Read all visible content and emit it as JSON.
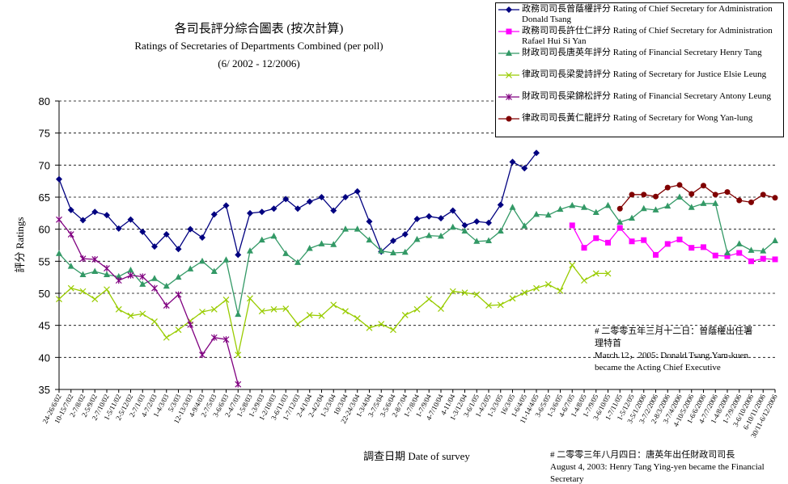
{
  "chart_data": {
    "type": "line",
    "title": "各司長評分綜合圖表 (按次計算)",
    "subtitle": "Ratings of Secretaries of Departments Combined (per poll)",
    "period": "(6/ 2002 -  12/2006)",
    "y_label": "評分 Ratings",
    "x_label": "調查日期 Date of survey",
    "categories": [
      "24-26/6/02",
      "10-15/7/02",
      "2-7/8/02",
      "2-5/9/02",
      "2-7/10/02",
      "1-5/11/02",
      "2-5/12/02",
      "2-7/1/03",
      "4-7/2/03",
      "1-4/3/03",
      "5/3/03",
      "12-13/3/03",
      "4-9/4/03",
      "2-7/5/03",
      "3-6/6/03",
      "2-4/7/03",
      "1-5/8/03",
      "1-3/9/03",
      "1-2/10/03",
      "3-6/11/03",
      "1-7/12/03",
      "2-4/1/04",
      "2-4/2/04",
      "1-3/3/04",
      "10/3/04",
      "22-24/3/04",
      "1-3/4/04",
      "3-7/5/04",
      "3-5/6/04",
      "2-8/7/04",
      "1-7/8/04",
      "1-7/9/04",
      "4-7/10/04",
      "4-11/04",
      "1-3/12/04",
      "3-6/1/05",
      "1-4/2/05",
      "1-3/3/05",
      "16/3/05",
      "1-6/4/05",
      "11-14/4/05",
      "3-6/5/05",
      "1-3/6/05",
      "4-6/7/05",
      "1-4/8/05",
      "1-7/9/05",
      "3-6/10/05",
      "1-7/11/05",
      "1-5/12/05",
      "3-5/1/2006",
      "3-7/2/2006",
      "2-8/3/2006",
      "3-7/4/2006",
      "4-10/5/2006",
      "1-6/6/2006",
      "4-7/7/2006",
      "1-4/8/2006",
      "1-7/9/2006",
      "3-6/10/2006",
      "6-10/11/2006",
      "30/11-6/12/2006"
    ],
    "series": [
      {
        "name": "政務司司長曾蔭權評分 Rating of Chief Secretary for Administration Donald Tsang",
        "color": "#000080",
        "marker": "diamond",
        "values": [
          67.8,
          63.0,
          61.4,
          62.7,
          62.2,
          60.1,
          61.5,
          59.6,
          57.3,
          59.2,
          56.9,
          60.0,
          58.7,
          62.3,
          63.7,
          56.0,
          62.5,
          62.7,
          63.2,
          64.7,
          63.2,
          64.3,
          65.0,
          62.9,
          65.0,
          65.9,
          61.2,
          56.5,
          58.2,
          59.2,
          61.6,
          62.0,
          61.7,
          62.9,
          60.6,
          61.2,
          61.0,
          63.8,
          70.5,
          69.5,
          71.9,
          null,
          null,
          null,
          null,
          null,
          null,
          null,
          null,
          null,
          null,
          null,
          null,
          null,
          null,
          null,
          null,
          null,
          null,
          null,
          null
        ]
      },
      {
        "name": "政務司司長許仕仁評分 Rating of Chief Secretary for Administration Rafael Hui Si Yan",
        "color": "#ff00ff",
        "marker": "square",
        "values": [
          null,
          null,
          null,
          null,
          null,
          null,
          null,
          null,
          null,
          null,
          null,
          null,
          null,
          null,
          null,
          null,
          null,
          null,
          null,
          null,
          null,
          null,
          null,
          null,
          null,
          null,
          null,
          null,
          null,
          null,
          null,
          null,
          null,
          null,
          null,
          null,
          null,
          null,
          null,
          null,
          null,
          null,
          null,
          60.6,
          57.1,
          58.6,
          57.9,
          60.2,
          58.1,
          58.3,
          56.0,
          57.7,
          58.4,
          57.1,
          57.2,
          55.9,
          55.8,
          56.3,
          55.0,
          55.4,
          55.3
        ]
      },
      {
        "name": "財政司司長唐英年評分 Rating of Financial Secretary Henry Tang",
        "color": "#339966",
        "marker": "triangle",
        "values": [
          56.2,
          54.2,
          52.9,
          53.4,
          52.9,
          52.6,
          53.6,
          51.4,
          52.3,
          51.1,
          52.5,
          53.8,
          55.0,
          53.4,
          55.2,
          46.7,
          56.6,
          58.3,
          58.9,
          56.2,
          54.8,
          57.0,
          57.7,
          57.6,
          60.0,
          60.0,
          58.3,
          56.6,
          56.3,
          56.4,
          58.4,
          59.0,
          58.9,
          60.3,
          59.7,
          58.1,
          58.2,
          59.7,
          63.4,
          60.5,
          62.3,
          62.2,
          63.1,
          63.7,
          63.4,
          62.6,
          63.7,
          61.1,
          61.7,
          63.2,
          63.0,
          63.6,
          65.0,
          63.4,
          64.0,
          64.0,
          56.3,
          57.7,
          56.7,
          56.6,
          58.2
        ]
      },
      {
        "name": "律政司司長梁愛詩評分 Rating of Secretary for Justice Elsie Leung",
        "color": "#99cc00",
        "marker": "x",
        "values": [
          49.1,
          50.8,
          50.3,
          49.1,
          50.6,
          47.5,
          46.5,
          46.8,
          45.6,
          43.1,
          44.3,
          45.7,
          47.1,
          47.5,
          49.0,
          40.4,
          49.2,
          47.2,
          47.5,
          47.6,
          45.2,
          46.6,
          46.5,
          48.2,
          47.2,
          46.1,
          44.6,
          45.2,
          44.3,
          46.6,
          47.5,
          49.1,
          47.6,
          50.3,
          50.1,
          49.8,
          48.1,
          48.2,
          49.2,
          50.1,
          50.8,
          51.4,
          50.4,
          54.4,
          52.0,
          53.1,
          53.1,
          null,
          null,
          null,
          null,
          null,
          null,
          null,
          null,
          null,
          null,
          null,
          null,
          null,
          null
        ]
      },
      {
        "name": "財政司司長梁錦松評分 Rating of Financial Secretary Antony Leung",
        "color": "#800080",
        "marker": "star",
        "values": [
          61.5,
          59.2,
          55.4,
          55.3,
          53.9,
          52.0,
          52.8,
          52.6,
          50.8,
          48.1,
          49.8,
          45.1,
          40.4,
          43.1,
          42.8,
          35.8,
          null,
          null,
          null,
          null,
          null,
          null,
          null,
          null,
          null,
          null,
          null,
          null,
          null,
          null,
          null,
          null,
          null,
          null,
          null,
          null,
          null,
          null,
          null,
          null,
          null,
          null,
          null,
          null,
          null,
          null,
          null,
          null,
          null,
          null,
          null,
          null,
          null,
          null,
          null,
          null,
          null,
          null,
          null,
          null,
          null
        ]
      },
      {
        "name": "律政司司長黃仁龍評分 Rating of Secretary for Wong Yan-lung",
        "color": "#800000",
        "marker": "circle",
        "values": [
          null,
          null,
          null,
          null,
          null,
          null,
          null,
          null,
          null,
          null,
          null,
          null,
          null,
          null,
          null,
          null,
          null,
          null,
          null,
          null,
          null,
          null,
          null,
          null,
          null,
          null,
          null,
          null,
          null,
          null,
          null,
          null,
          null,
          null,
          null,
          null,
          null,
          null,
          null,
          null,
          null,
          null,
          null,
          null,
          null,
          null,
          null,
          63.2,
          65.4,
          65.4,
          65.1,
          66.5,
          66.9,
          65.5,
          66.8,
          65.4,
          65.8,
          64.5,
          64.2,
          65.4,
          64.9
        ]
      }
    ],
    "ylim": [
      35,
      80
    ],
    "yticks": [
      35,
      40,
      45,
      50,
      55,
      60,
      65,
      70,
      75,
      80
    ],
    "grid": true,
    "legend": "top-right",
    "annotations": [
      {
        "lines": [
          "# 二零零五年三月十二日：曾蔭權出任署",
          "理特首",
          "March 12，2005: Donald Tsang Yam-kuen",
          "became the Acting Chief Executive"
        ]
      },
      {
        "lines": [
          "# 二零零三年八月四日：唐英年出任財政司司長",
          "August 4, 2003: Henry Tang Ying-yen became the Financial",
          "Secretary"
        ]
      }
    ]
  }
}
